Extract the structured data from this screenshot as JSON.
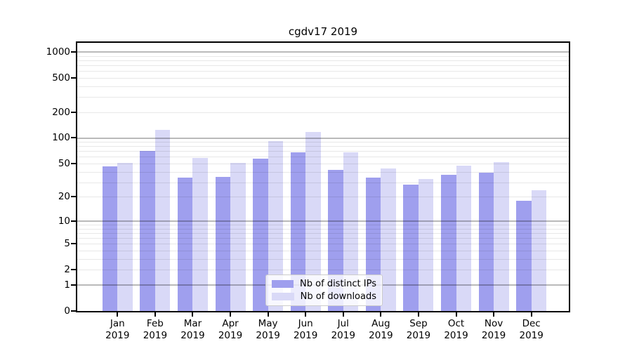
{
  "chart_data": {
    "type": "bar",
    "title": "cgdv17 2019",
    "yscale": "log1p",
    "ylim": [
      0,
      1280
    ],
    "y_ticks": [
      0,
      1,
      2,
      5,
      10,
      20,
      50,
      100,
      200,
      500,
      1000
    ],
    "x_months": [
      "Jan",
      "Feb",
      "Mar",
      "Apr",
      "May",
      "Jun",
      "Jul",
      "Aug",
      "Sep",
      "Oct",
      "Nov",
      "Dec"
    ],
    "x_year": "2019",
    "categories": [
      "Jan 2019",
      "Feb 2019",
      "Mar 2019",
      "Apr 2019",
      "May 2019",
      "Jun 2019",
      "Jul 2019",
      "Aug 2019",
      "Sep 2019",
      "Oct 2019",
      "Nov 2019",
      "Dec 2019"
    ],
    "grid": "both",
    "legend_position": "lower-center-inside",
    "series": [
      {
        "name": "Nb of distinct IPs",
        "color": "#9f9fee",
        "values": [
          46,
          70,
          34,
          35,
          57,
          68,
          42,
          34,
          28,
          37,
          39,
          18
        ]
      },
      {
        "name": "Nb of downloads",
        "color": "#d9d9f7",
        "values": [
          51,
          124,
          58,
          51,
          92,
          117,
          68,
          44,
          33,
          47,
          52,
          24
        ]
      }
    ]
  }
}
